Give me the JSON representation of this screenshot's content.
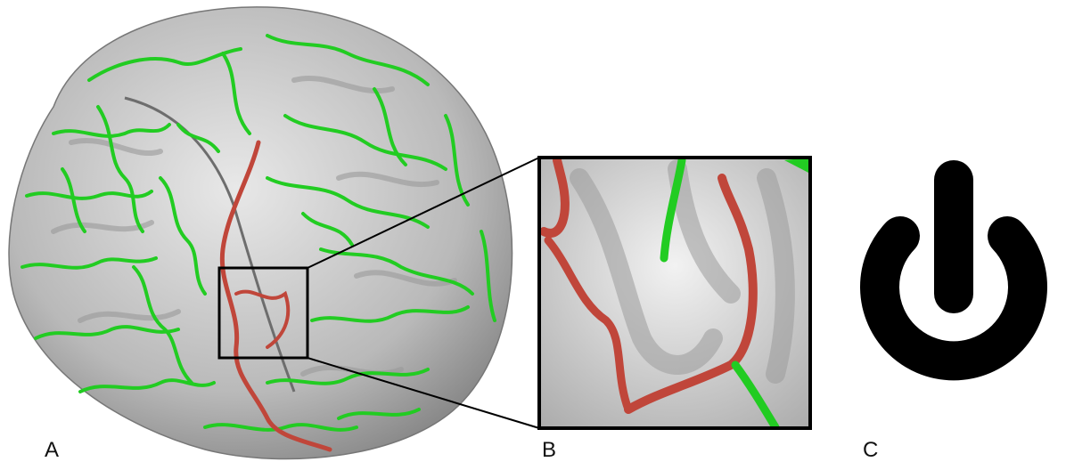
{
  "figure": {
    "panels": [
      {
        "label": "A",
        "content": "brain-surface-render"
      },
      {
        "label": "B",
        "content": "zoomed-sulcus-detail"
      },
      {
        "label": "C",
        "content": "power-symbol"
      }
    ]
  },
  "colors": {
    "background": "#ffffff",
    "cortex": "#c8c8c8",
    "sulcus_green": "#22cc22",
    "sulcus_red": "#c0463a",
    "outline": "#000000",
    "symbol": "#000000"
  },
  "icons": [
    "brain-icon",
    "zoom-box-icon",
    "power-icon"
  ]
}
